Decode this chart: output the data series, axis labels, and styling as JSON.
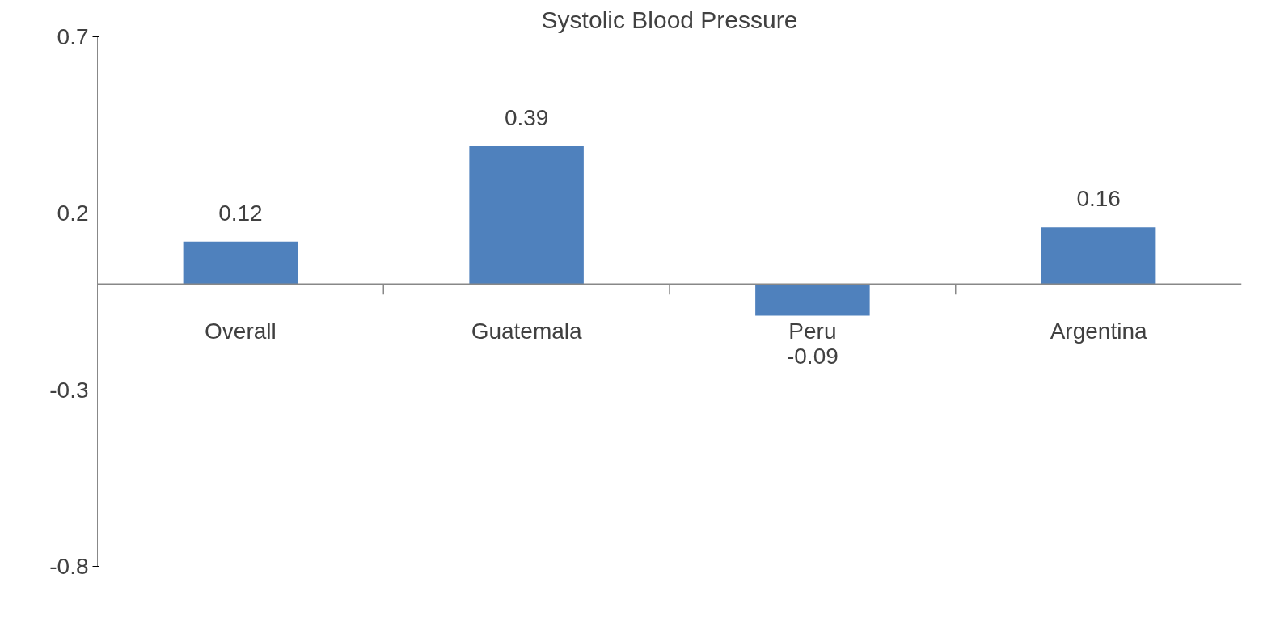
{
  "chart_data": {
    "type": "bar",
    "title": "Systolic Blood Pressure",
    "categories": [
      "Overall",
      "Guatemala",
      "Peru",
      "Argentina"
    ],
    "values": [
      0.12,
      0.39,
      -0.09,
      0.16
    ],
    "color": "#4f81bd",
    "ylim": [
      -0.8,
      0.7
    ],
    "yticks": [
      -0.8,
      -0.3,
      0.2,
      0.7
    ],
    "data_labels": true,
    "grid": false
  }
}
